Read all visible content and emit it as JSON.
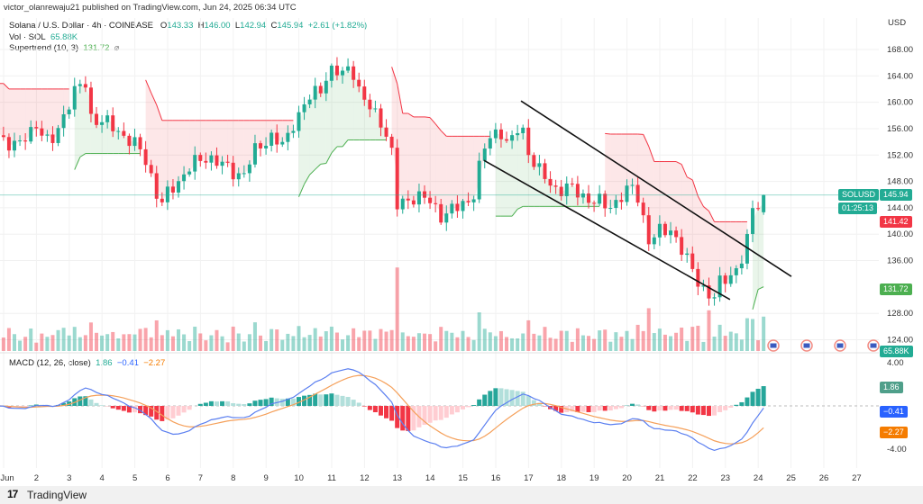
{
  "header": {
    "published": "victor_olanrewaju21 published on TradingView.com, Jun 24, 2025 06:34 UTC"
  },
  "legend": {
    "symbol": "Solana / U.S. Dollar · 4h · COINBASE",
    "o_label": "O",
    "o": "143.33",
    "h_label": "H",
    "h": "146.00",
    "l_label": "L",
    "l": "142.94",
    "c_label": "C",
    "c": "145.94",
    "change": "+2.61 (+1.82%)",
    "vol_label": "Vol · SOL",
    "vol": "65.88K",
    "supertrend_label": "Supertrend (10, 3)",
    "supertrend": "131.72",
    "supertrend_icon": "eye-off-icon",
    "macd_label": "MACD (12, 26, close)",
    "macd_hist": "1.86",
    "macd_line": "−0.41",
    "macd_signal": "−2.27"
  },
  "tags": {
    "symbol": "SOLUSD",
    "price": "145.94",
    "countdown": "01:25:13",
    "st_red": "141.42",
    "st_green": "131.72",
    "volume": "65.88K",
    "macd_hist": "1.86",
    "macd_line": "−0.41",
    "macd_signal": "−2.27"
  },
  "footer": {
    "brand": "TradingView"
  },
  "colors": {
    "up": "#22ab94",
    "down": "#f23645",
    "macd": "#5b7ff0",
    "signal": "#f5a05a",
    "st_up": "#4caf50",
    "st_down": "#f23645"
  },
  "chart_data": {
    "type": "candlestick",
    "symbol": "SOLUSD",
    "interval": "4h",
    "currency": "USD",
    "x_ticks": [
      "Jun",
      "2",
      "3",
      "4",
      "5",
      "6",
      "7",
      "8",
      "9",
      "10",
      "11",
      "12",
      "13",
      "14",
      "15",
      "16",
      "17",
      "18",
      "19",
      "20",
      "21",
      "22",
      "23",
      "24",
      "25",
      "26",
      "27"
    ],
    "y_ticks": [
      "168.00",
      "164.00",
      "160.00",
      "156.00",
      "152.00",
      "148.00",
      "144.00",
      "140.00",
      "136.00",
      "128.00",
      "124.00"
    ],
    "ylim": [
      122,
      170
    ],
    "close_path": [
      [
        0.89,
        155
      ],
      [
        1.44,
        153
      ],
      [
        1.99,
        157
      ],
      [
        2.4,
        153
      ],
      [
        2.81,
        158
      ],
      [
        3.09,
        161
      ],
      [
        3.5,
        163
      ],
      [
        3.64,
        158
      ],
      [
        3.97,
        157
      ],
      [
        4.46,
        156
      ],
      [
        4.87,
        154
      ],
      [
        5.29,
        152
      ],
      [
        5.56,
        148
      ],
      [
        5.78,
        144
      ],
      [
        6.11,
        147
      ],
      [
        6.66,
        150
      ],
      [
        7.21,
        152
      ],
      [
        7.76,
        150
      ],
      [
        8.31,
        149
      ],
      [
        8.72,
        153
      ],
      [
        9.13,
        155
      ],
      [
        9.54,
        153
      ],
      [
        9.82,
        157
      ],
      [
        10.23,
        160
      ],
      [
        10.64,
        162
      ],
      [
        10.92,
        165
      ],
      [
        11.33,
        164
      ],
      [
        11.6,
        166
      ],
      [
        11.88,
        161
      ],
      [
        12.15,
        159
      ],
      [
        12.57,
        157
      ],
      [
        12.84,
        152
      ],
      [
        12.98,
        144
      ],
      [
        13.25,
        145
      ],
      [
        13.53,
        146
      ],
      [
        13.94,
        145
      ],
      [
        14.35,
        143
      ],
      [
        14.9,
        144
      ],
      [
        15.31,
        146
      ],
      [
        15.59,
        152
      ],
      [
        15.86,
        155
      ],
      [
        16.14,
        156
      ],
      [
        16.41,
        153
      ],
      [
        16.77,
        157
      ],
      [
        16.96,
        153
      ],
      [
        17.37,
        149
      ],
      [
        17.79,
        147
      ],
      [
        18.2,
        147
      ],
      [
        18.61,
        146
      ],
      [
        19.02,
        145
      ],
      [
        19.43,
        144
      ],
      [
        19.85,
        146
      ],
      [
        20.26,
        147
      ],
      [
        20.53,
        142
      ],
      [
        20.67,
        139
      ],
      [
        20.95,
        140
      ],
      [
        21.36,
        141
      ],
      [
        21.63,
        138
      ],
      [
        21.91,
        135
      ],
      [
        22.18,
        133
      ],
      [
        22.46,
        131
      ],
      [
        22.65,
        130
      ],
      [
        22.87,
        133
      ],
      [
        23.14,
        134
      ],
      [
        23.42,
        135
      ],
      [
        23.64,
        138
      ],
      [
        23.83,
        144
      ],
      [
        24.13,
        145.94
      ]
    ],
    "last_candle": {
      "open": 143.33,
      "high": 146.0,
      "low": 142.94,
      "close": 145.94,
      "volume_k": 65.88
    },
    "trendlines": [
      {
        "from": [
          16.77,
          160.2
        ],
        "to": [
          25.01,
          133.6
        ]
      },
      {
        "from": [
          15.64,
          151.2
        ],
        "to": [
          23.14,
          130.1
        ]
      }
    ],
    "supertrend": {
      "period": 10,
      "factor": 3,
      "last": 131.72,
      "last_resistance": 141.42
    },
    "macd": {
      "fast": 12,
      "slow": 26,
      "source": "close",
      "y_ticks": [
        "4.00",
        "-4.00"
      ],
      "last_hist": 1.86,
      "last_macd": -0.41,
      "last_signal": -2.27
    },
    "event_flags": 4
  }
}
